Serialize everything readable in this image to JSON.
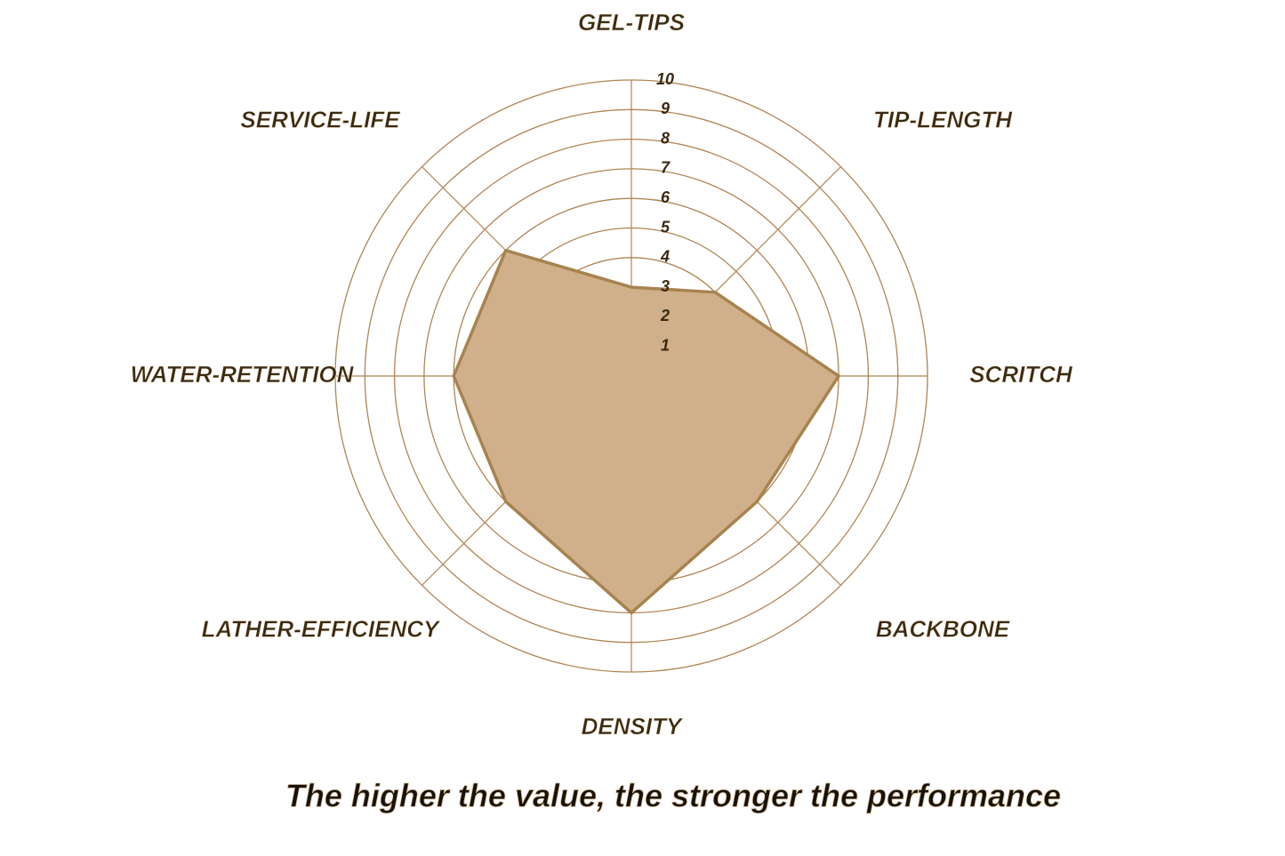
{
  "chart_data": {
    "type": "radar",
    "categories": [
      "GEL-TIPS",
      "TIP-LENGTH",
      "SCRITCH",
      "BACKBONE",
      "DENSITY",
      "LATHER-EFFICIENCY",
      "WATER-RETENTION",
      "SERVICE-LIFE"
    ],
    "values": [
      3,
      4,
      7,
      6,
      8,
      6,
      6,
      6
    ],
    "rlim": [
      0,
      10
    ],
    "rticks": [
      1,
      2,
      3,
      4,
      5,
      6,
      7,
      8,
      9,
      10
    ],
    "color": "#cfb08a",
    "edge_color": "#a8834f",
    "grid_color": "#b08554",
    "grid": true,
    "note": "The higher the value, the stronger the performance"
  }
}
